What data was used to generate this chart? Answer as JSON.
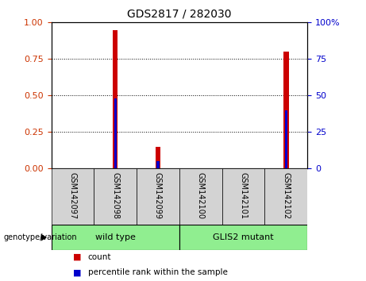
{
  "title": "GDS2817 / 282030",
  "samples": [
    "GSM142097",
    "GSM142098",
    "GSM142099",
    "GSM142100",
    "GSM142101",
    "GSM142102"
  ],
  "red_values": [
    0.0,
    0.95,
    0.15,
    0.0,
    0.0,
    0.8
  ],
  "blue_values": [
    0.0,
    0.48,
    0.05,
    0.0,
    0.0,
    0.4
  ],
  "groups": [
    {
      "label": "wild type",
      "start": 0,
      "end": 3,
      "color": "#90EE90"
    },
    {
      "label": "GLIS2 mutant",
      "start": 3,
      "end": 6,
      "color": "#90EE90"
    }
  ],
  "group_label": "genotype/variation",
  "legend_items": [
    {
      "label": "count",
      "color": "#cc0000"
    },
    {
      "label": "percentile rank within the sample",
      "color": "#0000cc"
    }
  ],
  "ylim_left": [
    0,
    1
  ],
  "ylim_right": [
    0,
    100
  ],
  "yticks_left": [
    0,
    0.25,
    0.5,
    0.75,
    1
  ],
  "yticks_right": [
    0,
    25,
    50,
    75,
    100
  ],
  "left_tick_color": "#cc3300",
  "right_tick_color": "#0000cc",
  "red_bar_width": 0.12,
  "blue_bar_width": 0.06,
  "plot_bg": "white",
  "bar_red_color": "#cc0000",
  "bar_blue_color": "#0000cc",
  "sample_box_color": "#d3d3d3",
  "group_box_color": "#90EE90"
}
